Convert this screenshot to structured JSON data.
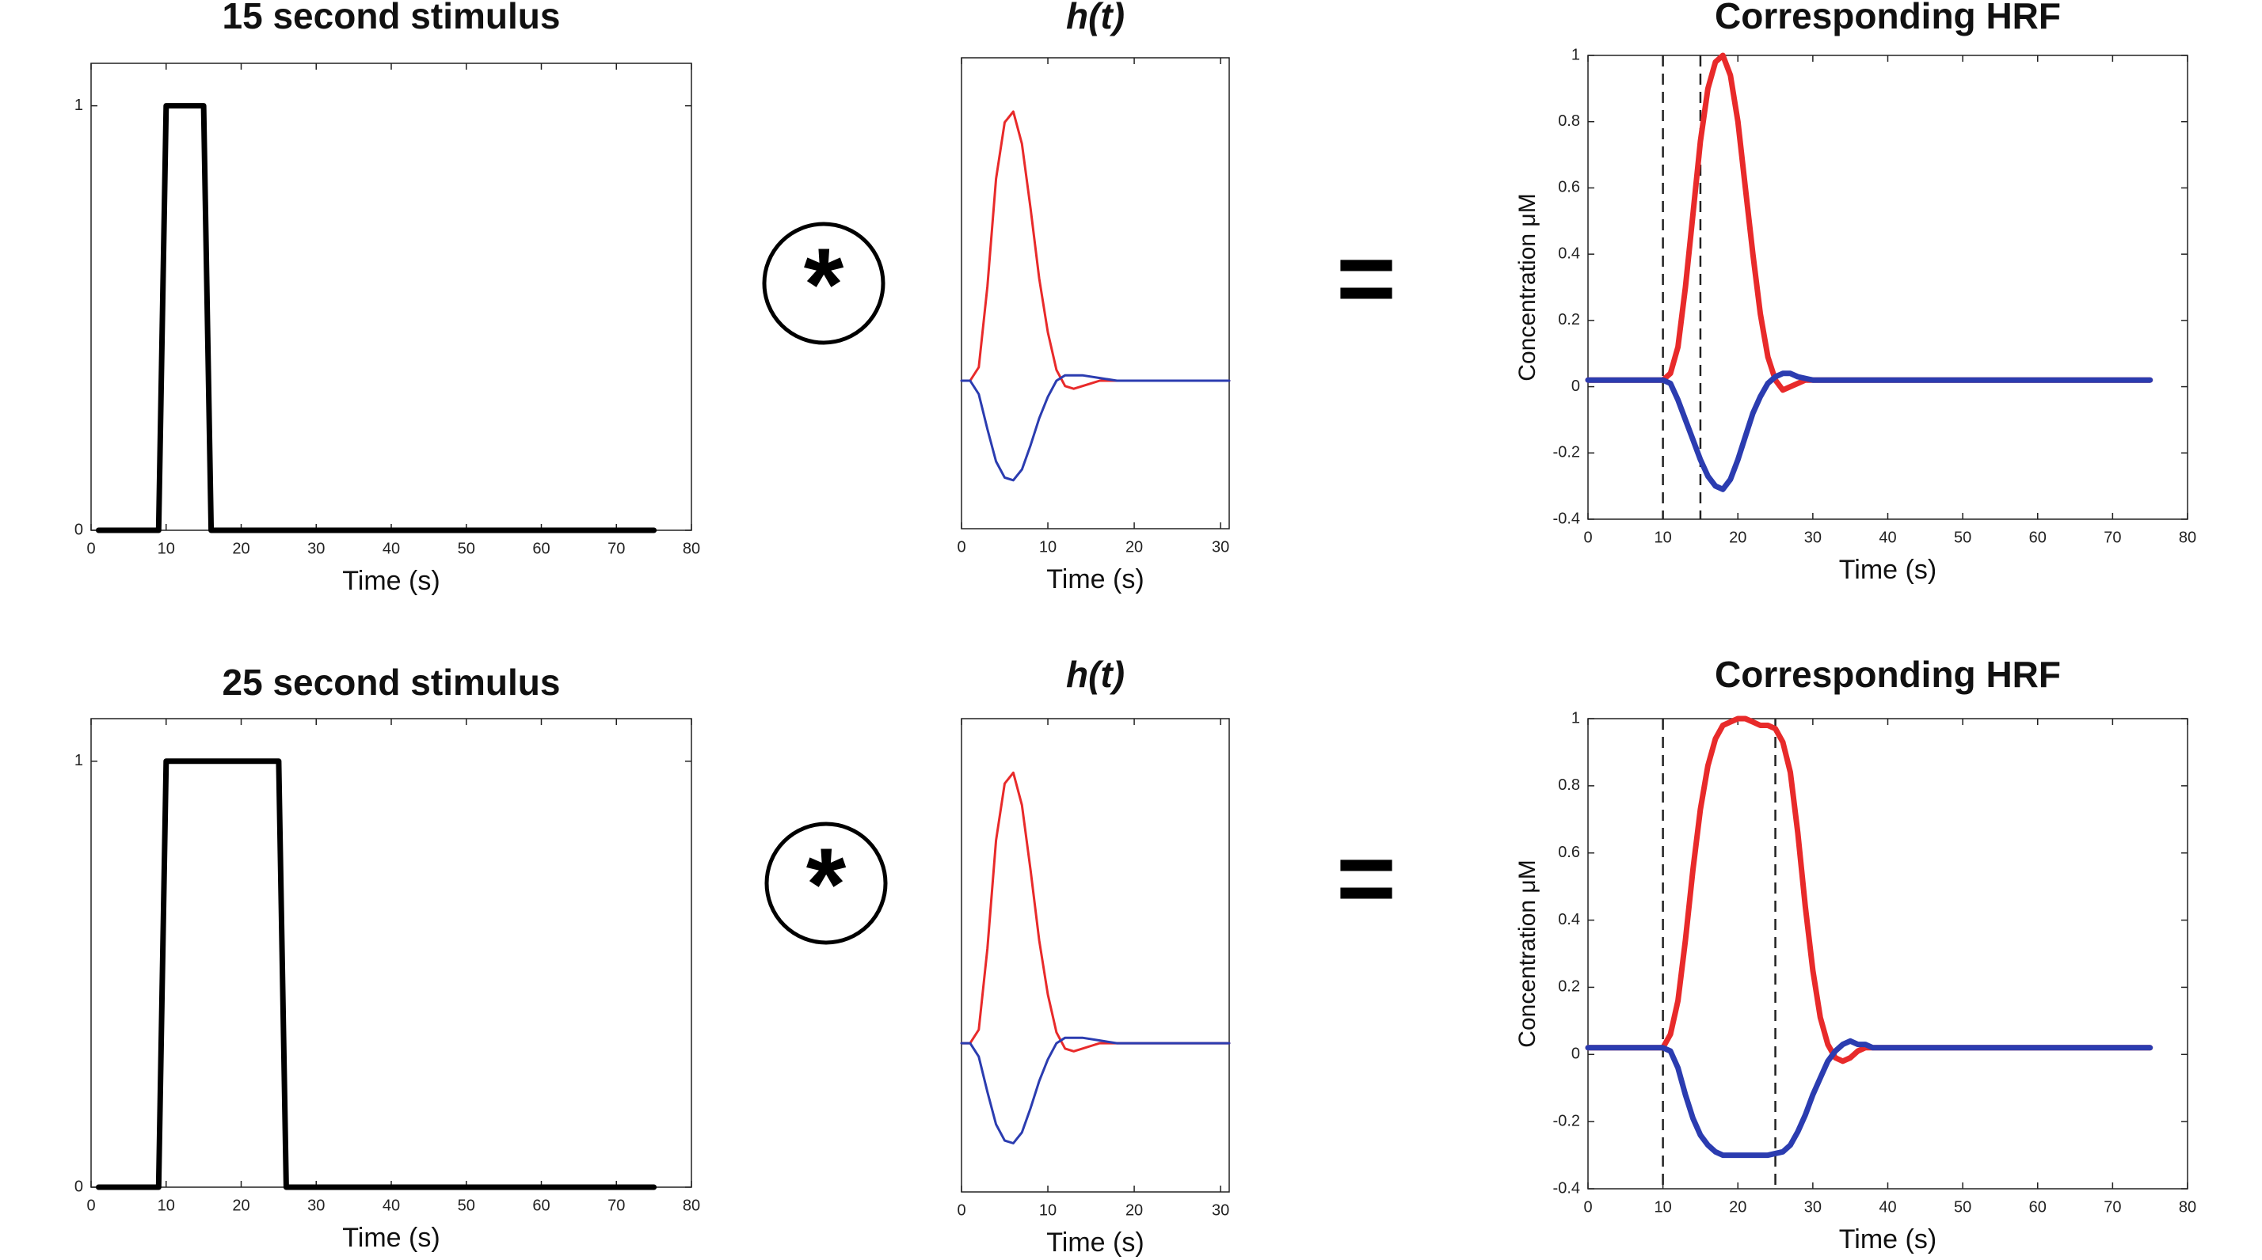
{
  "chart_data": [
    {
      "type": "line",
      "title": "15 second stimulus",
      "xlabel": "Time (s)",
      "ylabel": "",
      "xlim": [
        0,
        80
      ],
      "ylim": [
        0,
        1.1
      ],
      "xticks": [
        0,
        10,
        20,
        30,
        40,
        50,
        60,
        70,
        80
      ],
      "yticks": [
        0,
        1
      ],
      "series": [
        {
          "color": "#000000",
          "x": [
            1,
            9,
            10,
            15,
            16,
            75
          ],
          "y": [
            0,
            0,
            1,
            1,
            0,
            0
          ]
        }
      ]
    },
    {
      "type": "line",
      "title": "h(t)",
      "xlabel": "Time (s)",
      "ylabel": "",
      "xlim": [
        0,
        31
      ],
      "ylim": [
        -0.55,
        1.2
      ],
      "xticks": [
        0,
        10,
        20,
        30
      ],
      "yticks": [],
      "series": [
        {
          "color": "#e82a2a",
          "x": [
            0,
            1,
            2,
            3,
            4,
            5,
            6,
            7,
            8,
            9,
            10,
            11,
            12,
            13,
            14,
            15,
            16,
            18,
            20,
            24,
            31
          ],
          "y": [
            0,
            0,
            0.05,
            0.35,
            0.75,
            0.96,
            1.0,
            0.88,
            0.64,
            0.38,
            0.18,
            0.04,
            -0.02,
            -0.03,
            -0.02,
            -0.01,
            0,
            0,
            0,
            0,
            0
          ]
        },
        {
          "color": "#2b3cb0",
          "x": [
            0,
            1,
            2,
            3,
            4,
            5,
            6,
            7,
            8,
            9,
            10,
            11,
            12,
            13,
            14,
            16,
            18,
            20,
            24,
            31
          ],
          "y": [
            0,
            0,
            -0.05,
            -0.18,
            -0.3,
            -0.36,
            -0.37,
            -0.33,
            -0.24,
            -0.14,
            -0.06,
            0,
            0.02,
            0.02,
            0.02,
            0.01,
            0,
            0,
            0,
            0
          ]
        }
      ]
    },
    {
      "type": "line",
      "title": "Corresponding HRF",
      "xlabel": "Time (s)",
      "ylabel": "Concentration μM",
      "xlim": [
        0,
        80
      ],
      "ylim": [
        -0.4,
        1
      ],
      "xticks": [
        0,
        10,
        20,
        30,
        40,
        50,
        60,
        70,
        80
      ],
      "yticks": [
        -0.4,
        -0.2,
        0,
        0.2,
        0.4,
        0.6,
        0.8,
        1
      ],
      "vlines": [
        10,
        15
      ],
      "series": [
        {
          "color": "#e82a2a",
          "x": [
            0,
            10,
            11,
            12,
            13,
            14,
            15,
            16,
            17,
            18,
            19,
            20,
            21,
            22,
            23,
            24,
            25,
            26,
            27,
            28,
            29,
            30,
            32,
            35,
            40,
            75
          ],
          "y": [
            0.02,
            0.02,
            0.04,
            0.12,
            0.3,
            0.52,
            0.74,
            0.9,
            0.98,
            1.0,
            0.94,
            0.8,
            0.6,
            0.4,
            0.22,
            0.09,
            0.02,
            -0.01,
            0,
            0.01,
            0.02,
            0.02,
            0.02,
            0.02,
            0.02,
            0.02
          ]
        },
        {
          "color": "#2b3cb0",
          "x": [
            0,
            10,
            11,
            12,
            13,
            14,
            15,
            16,
            17,
            18,
            19,
            20,
            21,
            22,
            23,
            24,
            25,
            26,
            27,
            28,
            30,
            32,
            35,
            40,
            75
          ],
          "y": [
            0.02,
            0.02,
            0.01,
            -0.04,
            -0.1,
            -0.16,
            -0.22,
            -0.27,
            -0.3,
            -0.31,
            -0.28,
            -0.22,
            -0.15,
            -0.08,
            -0.03,
            0.01,
            0.03,
            0.04,
            0.04,
            0.03,
            0.02,
            0.02,
            0.02,
            0.02,
            0.02
          ]
        }
      ]
    },
    {
      "type": "line",
      "title": "25 second stimulus",
      "xlabel": "Time (s)",
      "ylabel": "",
      "xlim": [
        0,
        80
      ],
      "ylim": [
        0,
        1.1
      ],
      "xticks": [
        0,
        10,
        20,
        30,
        40,
        50,
        60,
        70,
        80
      ],
      "yticks": [
        0,
        1
      ],
      "series": [
        {
          "color": "#000000",
          "x": [
            1,
            9,
            10,
            25,
            26,
            75
          ],
          "y": [
            0,
            0,
            1,
            1,
            0,
            0
          ]
        }
      ]
    },
    {
      "type": "line",
      "title": "h(t)",
      "xlabel": "Time (s)",
      "ylabel": "",
      "xlim": [
        0,
        31
      ],
      "ylim": [
        -0.55,
        1.2
      ],
      "xticks": [
        0,
        10,
        20,
        30
      ],
      "yticks": [],
      "series": [
        {
          "color": "#e82a2a",
          "x": [
            0,
            1,
            2,
            3,
            4,
            5,
            6,
            7,
            8,
            9,
            10,
            11,
            12,
            13,
            14,
            15,
            16,
            18,
            20,
            24,
            31
          ],
          "y": [
            0,
            0,
            0.05,
            0.35,
            0.75,
            0.96,
            1.0,
            0.88,
            0.64,
            0.38,
            0.18,
            0.04,
            -0.02,
            -0.03,
            -0.02,
            -0.01,
            0,
            0,
            0,
            0,
            0
          ]
        },
        {
          "color": "#2b3cb0",
          "x": [
            0,
            1,
            2,
            3,
            4,
            5,
            6,
            7,
            8,
            9,
            10,
            11,
            12,
            13,
            14,
            16,
            18,
            20,
            24,
            31
          ],
          "y": [
            0,
            0,
            -0.05,
            -0.18,
            -0.3,
            -0.36,
            -0.37,
            -0.33,
            -0.24,
            -0.14,
            -0.06,
            0,
            0.02,
            0.02,
            0.02,
            0.01,
            0,
            0,
            0,
            0
          ]
        }
      ]
    },
    {
      "type": "line",
      "title": "Corresponding HRF",
      "xlabel": "Time (s)",
      "ylabel": "Concentration μM",
      "xlim": [
        0,
        80
      ],
      "ylim": [
        -0.4,
        1
      ],
      "xticks": [
        0,
        10,
        20,
        30,
        40,
        50,
        60,
        70,
        80
      ],
      "yticks": [
        -0.4,
        -0.2,
        0,
        0.2,
        0.4,
        0.6,
        0.8,
        1
      ],
      "vlines": [
        10,
        25
      ],
      "series": [
        {
          "color": "#e82a2a",
          "x": [
            0,
            10,
            11,
            12,
            13,
            14,
            15,
            16,
            17,
            18,
            19,
            20,
            21,
            22,
            23,
            24,
            25,
            26,
            27,
            28,
            29,
            30,
            31,
            32,
            33,
            34,
            35,
            36,
            37,
            38,
            40,
            45,
            75
          ],
          "y": [
            0.02,
            0.02,
            0.06,
            0.16,
            0.34,
            0.55,
            0.73,
            0.86,
            0.94,
            0.98,
            0.99,
            1.0,
            1.0,
            0.99,
            0.98,
            0.98,
            0.97,
            0.93,
            0.84,
            0.66,
            0.44,
            0.25,
            0.11,
            0.03,
            -0.01,
            -0.02,
            -0.01,
            0.01,
            0.02,
            0.02,
            0.02,
            0.02,
            0.02
          ]
        },
        {
          "color": "#2b3cb0",
          "x": [
            0,
            10,
            11,
            12,
            13,
            14,
            15,
            16,
            17,
            18,
            19,
            20,
            22,
            24,
            26,
            27,
            28,
            29,
            30,
            31,
            32,
            33,
            34,
            35,
            36,
            37,
            38,
            40,
            45,
            75
          ],
          "y": [
            0.02,
            0.02,
            0.01,
            -0.04,
            -0.12,
            -0.19,
            -0.24,
            -0.27,
            -0.29,
            -0.3,
            -0.3,
            -0.3,
            -0.3,
            -0.3,
            -0.29,
            -0.27,
            -0.23,
            -0.18,
            -0.12,
            -0.07,
            -0.02,
            0.01,
            0.03,
            0.04,
            0.03,
            0.03,
            0.02,
            0.02,
            0.02,
            0.02
          ]
        }
      ]
    }
  ],
  "operators": [
    {
      "symbol": "*",
      "row": 0
    },
    {
      "symbol": "=",
      "row": 0
    },
    {
      "symbol": "*",
      "row": 1
    },
    {
      "symbol": "=",
      "row": 1
    }
  ]
}
